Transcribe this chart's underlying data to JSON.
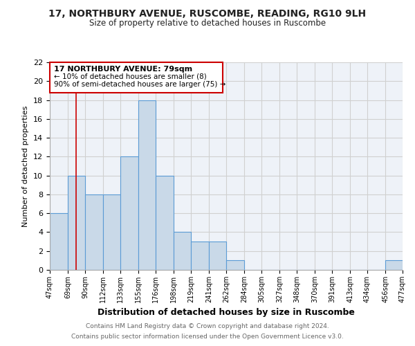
{
  "title": "17, NORTHBURY AVENUE, RUSCOMBE, READING, RG10 9LH",
  "subtitle": "Size of property relative to detached houses in Ruscombe",
  "xlabel": "Distribution of detached houses by size in Ruscombe",
  "ylabel": "Number of detached properties",
  "bar_edges": [
    47,
    69,
    90,
    112,
    133,
    155,
    176,
    198,
    219,
    241,
    262,
    284,
    305,
    327,
    348,
    370,
    391,
    413,
    434,
    456,
    477
  ],
  "bar_heights": [
    6,
    10,
    8,
    8,
    12,
    18,
    10,
    4,
    3,
    3,
    1,
    0,
    0,
    0,
    0,
    0,
    0,
    0,
    0,
    1
  ],
  "bar_color": "#c9d9e8",
  "bar_edge_color": "#5b9bd5",
  "grid_color": "#d0d0d0",
  "background_color": "#eef2f8",
  "vline_x": 79,
  "vline_color": "#cc0000",
  "annotation_title": "17 NORTHBURY AVENUE: 79sqm",
  "annotation_line1": "← 10% of detached houses are smaller (8)",
  "annotation_line2": "90% of semi-detached houses are larger (75) →",
  "annotation_box_color": "#ffffff",
  "annotation_border_color": "#cc0000",
  "tick_labels": [
    "47sqm",
    "69sqm",
    "90sqm",
    "112sqm",
    "133sqm",
    "155sqm",
    "176sqm",
    "198sqm",
    "219sqm",
    "241sqm",
    "262sqm",
    "284sqm",
    "305sqm",
    "327sqm",
    "348sqm",
    "370sqm",
    "391sqm",
    "413sqm",
    "434sqm",
    "456sqm",
    "477sqm"
  ],
  "ylim": [
    0,
    22
  ],
  "yticks": [
    0,
    2,
    4,
    6,
    8,
    10,
    12,
    14,
    16,
    18,
    20,
    22
  ],
  "footer_line1": "Contains HM Land Registry data © Crown copyright and database right 2024.",
  "footer_line2": "Contains public sector information licensed under the Open Government Licence v3.0."
}
